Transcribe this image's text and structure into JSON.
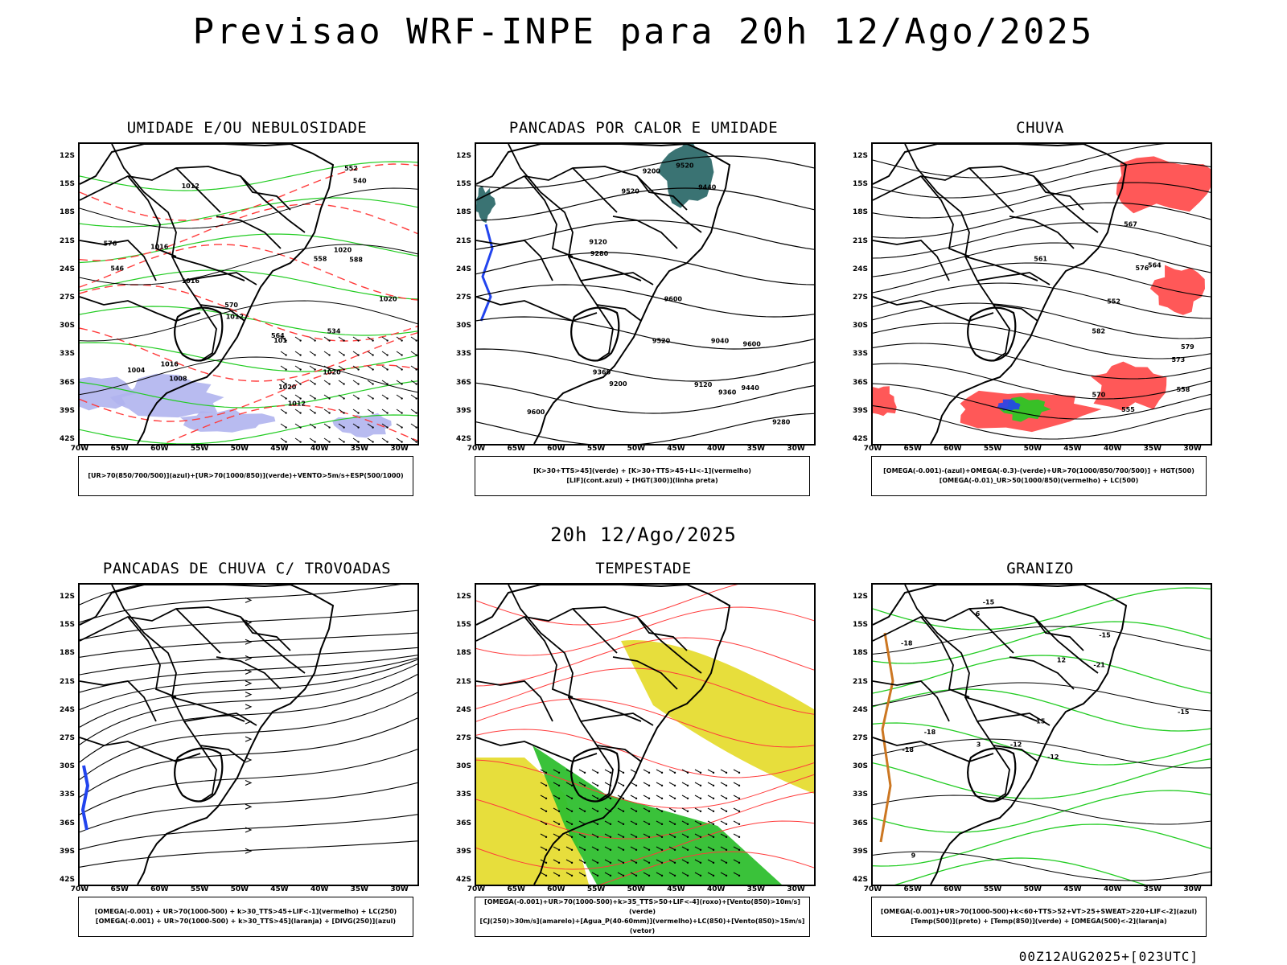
{
  "header": {
    "title": "Previsao WRF-INPE  para 20h 12/Ago/2025"
  },
  "mid_title": "20h 12/Ago/2025",
  "footer": "00Z12AUG2025+[023UTC]",
  "axes": {
    "lat_labels": [
      "12S",
      "15S",
      "18S",
      "21S",
      "24S",
      "27S",
      "30S",
      "33S",
      "36S",
      "39S",
      "42S"
    ],
    "lon_labels": [
      "70W",
      "65W",
      "60W",
      "55W",
      "50W",
      "45W",
      "40W",
      "35W",
      "30W"
    ]
  },
  "colors": {
    "black": "#000000",
    "red": "#ff3b3b",
    "green": "#22cc22",
    "blue": "#2244ee",
    "yellow": "#e6dc32",
    "teal": "#2f6b6b",
    "lavender": "#b0b4ee",
    "orange": "#cc7722"
  },
  "chart_data": [
    {
      "type": "heatmap",
      "title": "UMIDADE E/OU NEBULOSIDADE",
      "legend": [
        "[UR>70(850/700/500)](azul)+[UR>70(1000/850)](verde)+VENTO>5m/s+ESP(500/1000)"
      ],
      "contour_labels": [
        "1012",
        "1012",
        "1016",
        "1016",
        "1020",
        "1020",
        "1020",
        "1016",
        "1012",
        "1008",
        "1004",
        "576",
        "570",
        "564",
        "558",
        "552",
        "546",
        "540",
        "534",
        "588",
        "1020",
        "101"
      ]
    },
    {
      "type": "heatmap",
      "title": "PANCADAS POR CALOR E UMIDADE",
      "legend": [
        "[K>30+TTS>45](verde) + [K>30+TTS>45+LI<-1](vermelho)",
        "[LIF](cont.azul) + [HGT(300)](linha preta)"
      ],
      "contour_labels": [
        "9600",
        "9600",
        "9600",
        "9520",
        "9520",
        "9520",
        "9440",
        "9440",
        "9360",
        "9360",
        "9280",
        "9280",
        "9200",
        "9200",
        "9120",
        "9120",
        "9040"
      ]
    },
    {
      "type": "heatmap",
      "title": "CHUVA",
      "legend": [
        "[OMEGA(-0.001)-(azul)+OMEGA(-0.3)-(verde)+UR>70(1000/850/700/500)] + HGT(500)",
        "[OMEGA(-0.01)_UR>50(1000/850)(vermelho) + LC(500)"
      ],
      "contour_labels": [
        "582",
        "579",
        "576",
        "573",
        "570",
        "567",
        "564",
        "561",
        "558",
        "555",
        "552"
      ]
    },
    {
      "type": "line",
      "title": "PANCADAS DE CHUVA C/ TROVOADAS",
      "legend": [
        "[OMEGA(-0.001) + UR>70(1000-500) + k>30_TTS>45+LIF<-1](vermelho) + LC(250)",
        "[OMEGA(-0.001) + UR>70(1000-500) + k>30_TTS>45](laranja) + [DIVG(250)](azul)"
      ]
    },
    {
      "type": "heatmap",
      "title": "TEMPESTADE",
      "legend": [
        "[OMEGA(-0.001)+UR>70(1000-500)+k>35_TTS>50+LIF<-4](roxo)+[Vento(850)>10m/s](verde)",
        "[CJ(250)>30m/s](amarelo)+[Agua_P(40-60mm)](vermelho)+LC(850)+[Vento(850)>15m/s](vetor)"
      ]
    },
    {
      "type": "heatmap",
      "title": "GRANIZO",
      "legend": [
        "[OMEGA(-0.001)+UR>70(1000-500)+k<60+TTS>52+VT>25+SWEAT>220+LIF<-2](azul)",
        "[Temp(500)](preto) + [Temp(850)](verde) + [OMEGA(500)<-2](laranja)"
      ],
      "contour_labels": [
        "-15",
        "-15",
        "-15",
        "-12",
        "-12",
        "-18",
        "-18",
        "-21",
        "-18",
        "12",
        "15",
        "9",
        "6",
        "3"
      ]
    }
  ]
}
